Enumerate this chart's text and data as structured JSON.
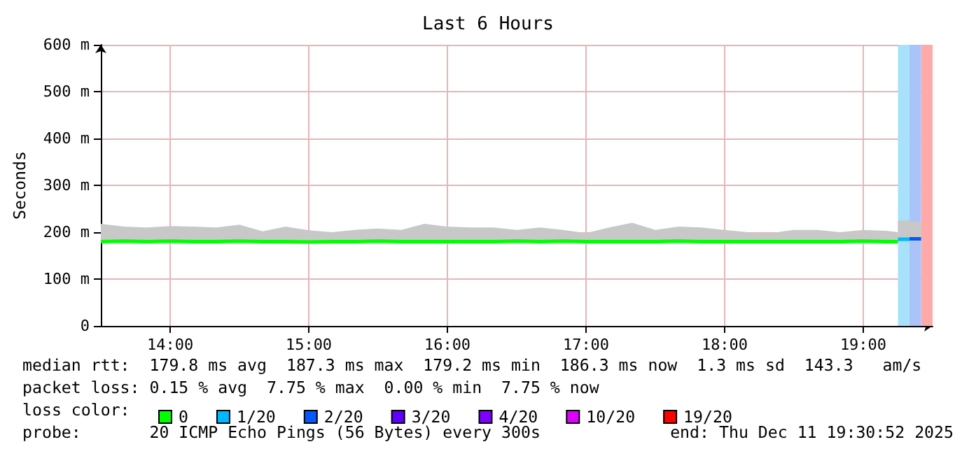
{
  "chart_data": {
    "type": "line",
    "title": "Last 6 Hours",
    "ylabel": "Seconds",
    "xlim": [
      13.5,
      19.5
    ],
    "xticks": [
      {
        "value": 14,
        "label": "14:00"
      },
      {
        "value": 15,
        "label": "15:00"
      },
      {
        "value": 16,
        "label": "16:00"
      },
      {
        "value": 17,
        "label": "17:00"
      },
      {
        "value": 18,
        "label": "18:00"
      },
      {
        "value": 19,
        "label": "19:00"
      }
    ],
    "ylim": [
      0,
      600
    ],
    "yticks": [
      {
        "value": 0,
        "label": "0"
      },
      {
        "value": 100,
        "label": "100 m"
      },
      {
        "value": 200,
        "label": "200 m"
      },
      {
        "value": 300,
        "label": "300 m"
      },
      {
        "value": 400,
        "label": "400 m"
      },
      {
        "value": 500,
        "label": "500 m"
      },
      {
        "value": 600,
        "label": "600 m"
      }
    ],
    "grid": true,
    "legend": "bottom",
    "legend_title": "loss color:",
    "marker": "none",
    "line_style": "solid",
    "series": [
      {
        "name": "0",
        "color": "#00ff00",
        "x": [
          13.5,
          13.667,
          13.833,
          14,
          14.167,
          14.333,
          14.5,
          14.667,
          14.833,
          15,
          15.167,
          15.333,
          15.5,
          15.667,
          15.833,
          16,
          16.167,
          16.333,
          16.5,
          16.667,
          16.833,
          17,
          17.167,
          17.333,
          17.5,
          17.667,
          17.833,
          18,
          18.167,
          18.333,
          18.5,
          18.667,
          18.833,
          19,
          19.167,
          19.25
        ],
        "values": [
          180,
          181,
          180,
          181,
          180,
          180,
          181,
          180,
          180,
          179,
          180,
          180,
          181,
          180,
          180,
          180,
          180,
          180,
          181,
          180,
          181,
          180,
          180,
          180,
          180,
          181,
          180,
          180,
          180,
          180,
          180,
          180,
          180,
          181,
          180,
          180
        ],
        "lower": [
          178,
          178,
          178,
          178,
          178,
          178,
          178,
          178,
          178,
          178,
          178,
          178,
          178,
          178,
          178,
          178,
          178,
          178,
          178,
          178,
          178,
          178,
          178,
          178,
          178,
          178,
          178,
          178,
          178,
          178,
          178,
          178,
          178,
          178,
          178,
          178
        ],
        "upper": [
          218,
          212,
          210,
          213,
          212,
          210,
          216,
          202,
          212,
          204,
          200,
          205,
          208,
          205,
          218,
          212,
          210,
          210,
          205,
          210,
          205,
          198,
          210,
          220,
          205,
          212,
          210,
          205,
          200,
          198,
          205,
          205,
          200,
          205,
          203,
          200
        ]
      },
      {
        "name": "1/20",
        "color": "#00b8ff",
        "x": [
          19.25,
          19.333
        ],
        "values": [
          185,
          185
        ],
        "lower": [
          180,
          180
        ],
        "upper": [
          225,
          225
        ]
      },
      {
        "name": "2/20",
        "color": "#0059ff",
        "x": [
          19.333,
          19.417
        ],
        "values": [
          186,
          186
        ],
        "lower": [
          180,
          180
        ],
        "upper": [
          222,
          222
        ]
      },
      {
        "name": "3/20",
        "color": "#5e00ff"
      },
      {
        "name": "4/20",
        "color": "#7e00ff"
      },
      {
        "name": "10/20",
        "color": "#dd00ff"
      },
      {
        "name": "19/20",
        "color": "#ff0000"
      }
    ],
    "bands": [
      {
        "axis": "x",
        "from": 19.25,
        "to": 19.333,
        "color": "#a8e2fa"
      },
      {
        "axis": "x",
        "from": 19.333,
        "to": 19.417,
        "color": "#aac4fa"
      },
      {
        "axis": "x",
        "from": 19.417,
        "to": 19.5,
        "color": "#ffaaaa"
      }
    ],
    "annotations": [
      "median rtt:  179.8 ms avg  187.3 ms max  179.2 ms min  186.3 ms now  1.3 ms sd  143.3   am/s",
      "packet loss: 0.15 % avg  7.75 % max  0.00 % min  7.75 % now",
      "probe:       20 ICMP Echo Pings (56 Bytes) every 300s",
      "end: Thu Dec 11 19:30:52 2025"
    ]
  }
}
